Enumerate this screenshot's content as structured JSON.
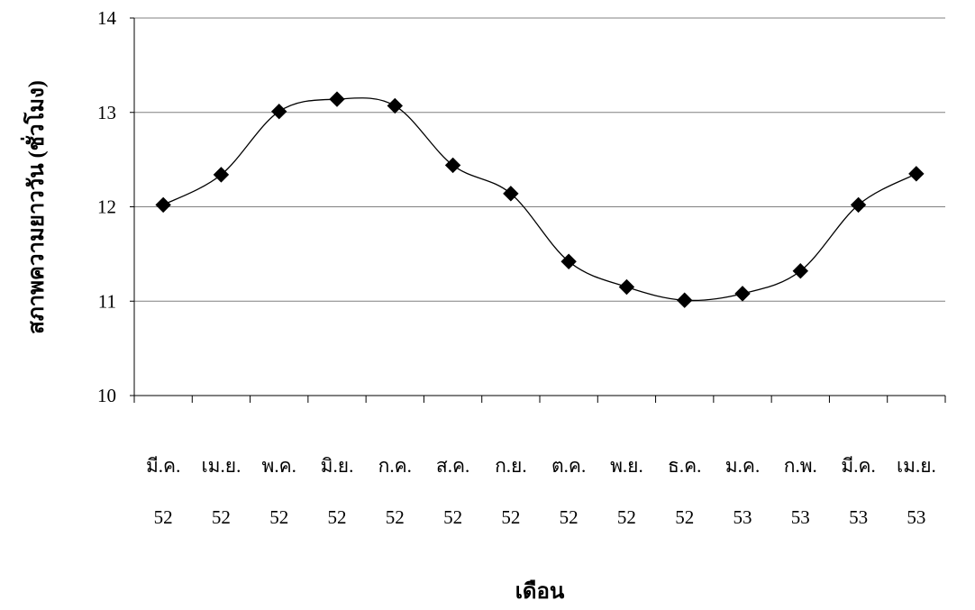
{
  "chart_data": {
    "type": "line",
    "title": "",
    "xlabel": "เดือน",
    "ylabel": "สภาพความยาววัน (ชั่วโมง)",
    "ylim": [
      10,
      14
    ],
    "yticks": [
      10,
      11,
      12,
      13,
      14
    ],
    "grid": true,
    "smooth": true,
    "marker": "diamond",
    "categories": [
      [
        "มี.ค.",
        "52"
      ],
      [
        "เม.ย.",
        "52"
      ],
      [
        "พ.ค.",
        "52"
      ],
      [
        "มิ.ย.",
        "52"
      ],
      [
        "ก.ค.",
        "52"
      ],
      [
        "ส.ค.",
        "52"
      ],
      [
        "ก.ย.",
        "52"
      ],
      [
        "ต.ค.",
        "52"
      ],
      [
        "พ.ย.",
        "52"
      ],
      [
        "ธ.ค.",
        "52"
      ],
      [
        "ม.ค.",
        "53"
      ],
      [
        "ก.พ.",
        "53"
      ],
      [
        "มี.ค.",
        "53"
      ],
      [
        "เม.ย.",
        "53"
      ]
    ],
    "values": [
      12.02,
      12.34,
      13.01,
      13.14,
      13.07,
      12.44,
      12.14,
      11.42,
      11.15,
      11.01,
      11.08,
      11.32,
      12.02,
      12.35
    ],
    "colors": {
      "line": "#000000",
      "marker": "#000000",
      "grid": "#808080"
    }
  }
}
